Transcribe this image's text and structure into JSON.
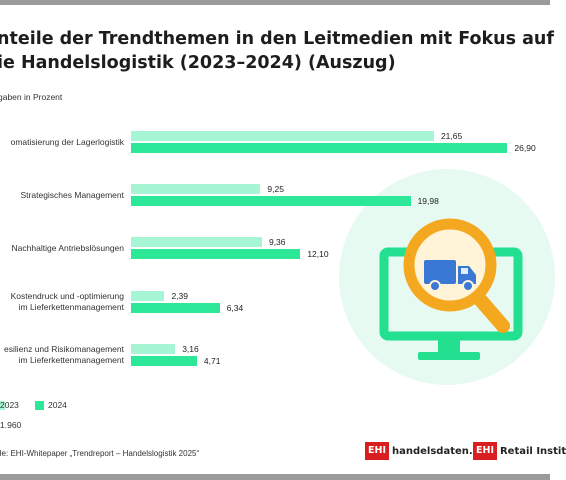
{
  "header": {
    "title_line1": "nteile der Trendthemen in den Leitmedien mit Fokus auf",
    "title_line2": "ie Handelslogistik (2023–2024) (Auszug)",
    "subtitle": "gaben in Prozent"
  },
  "chart_data": {
    "type": "bar",
    "orientation": "horizontal",
    "title": "nteile der Trendthemen in den Leitmedien mit Fokus auf ie Handelslogistik (2023–2024) (Auszug)",
    "unit": "gaben in Prozent",
    "categories": [
      [
        "omatisierung der Lagerlogistik"
      ],
      [
        "Strategisches Management"
      ],
      [
        "Nachhaltige Antriebslösungen"
      ],
      [
        "Kostendruck und -optimierung",
        "im Lieferkettenmanagement"
      ],
      [
        "esilienz und Risikomanagement",
        "im Lieferkettenmanagement"
      ]
    ],
    "series": [
      {
        "name": "2023",
        "values": [
          21.65,
          9.25,
          9.36,
          2.39,
          3.16
        ],
        "labels": [
          "21,65",
          "9,25",
          "9,36",
          "2,39",
          "3,16"
        ],
        "color": "#a6f5d4"
      },
      {
        "name": "2024",
        "values": [
          26.9,
          19.98,
          12.1,
          6.34,
          4.71
        ],
        "labels": [
          "26,90",
          "19,98",
          "12,10",
          "6,34",
          "4,71"
        ],
        "color": "#2ee89a"
      }
    ],
    "xlim": [
      0,
      27.8
    ],
    "grid": false,
    "legend_position": "bottom-left"
  },
  "legend": {
    "label_2023": "2023",
    "label_2024": "2024"
  },
  "footer": {
    "sample": "1.960",
    "source": "lle: EHI-Whitepaper „Trendreport – Handelslogistik 2025“"
  },
  "logos": {
    "box1": "EHI",
    "text1": "handelsdaten.de",
    "box2": "EHI",
    "text2": "Retail Instit"
  },
  "decoration": {
    "icon_name": "monitor-truck-magnifier-icon",
    "circle_color": "#e6faf1",
    "monitor_color": "#22e08f",
    "magnifier_color": "#f3a81f",
    "truck_color": "#3a78d6"
  }
}
